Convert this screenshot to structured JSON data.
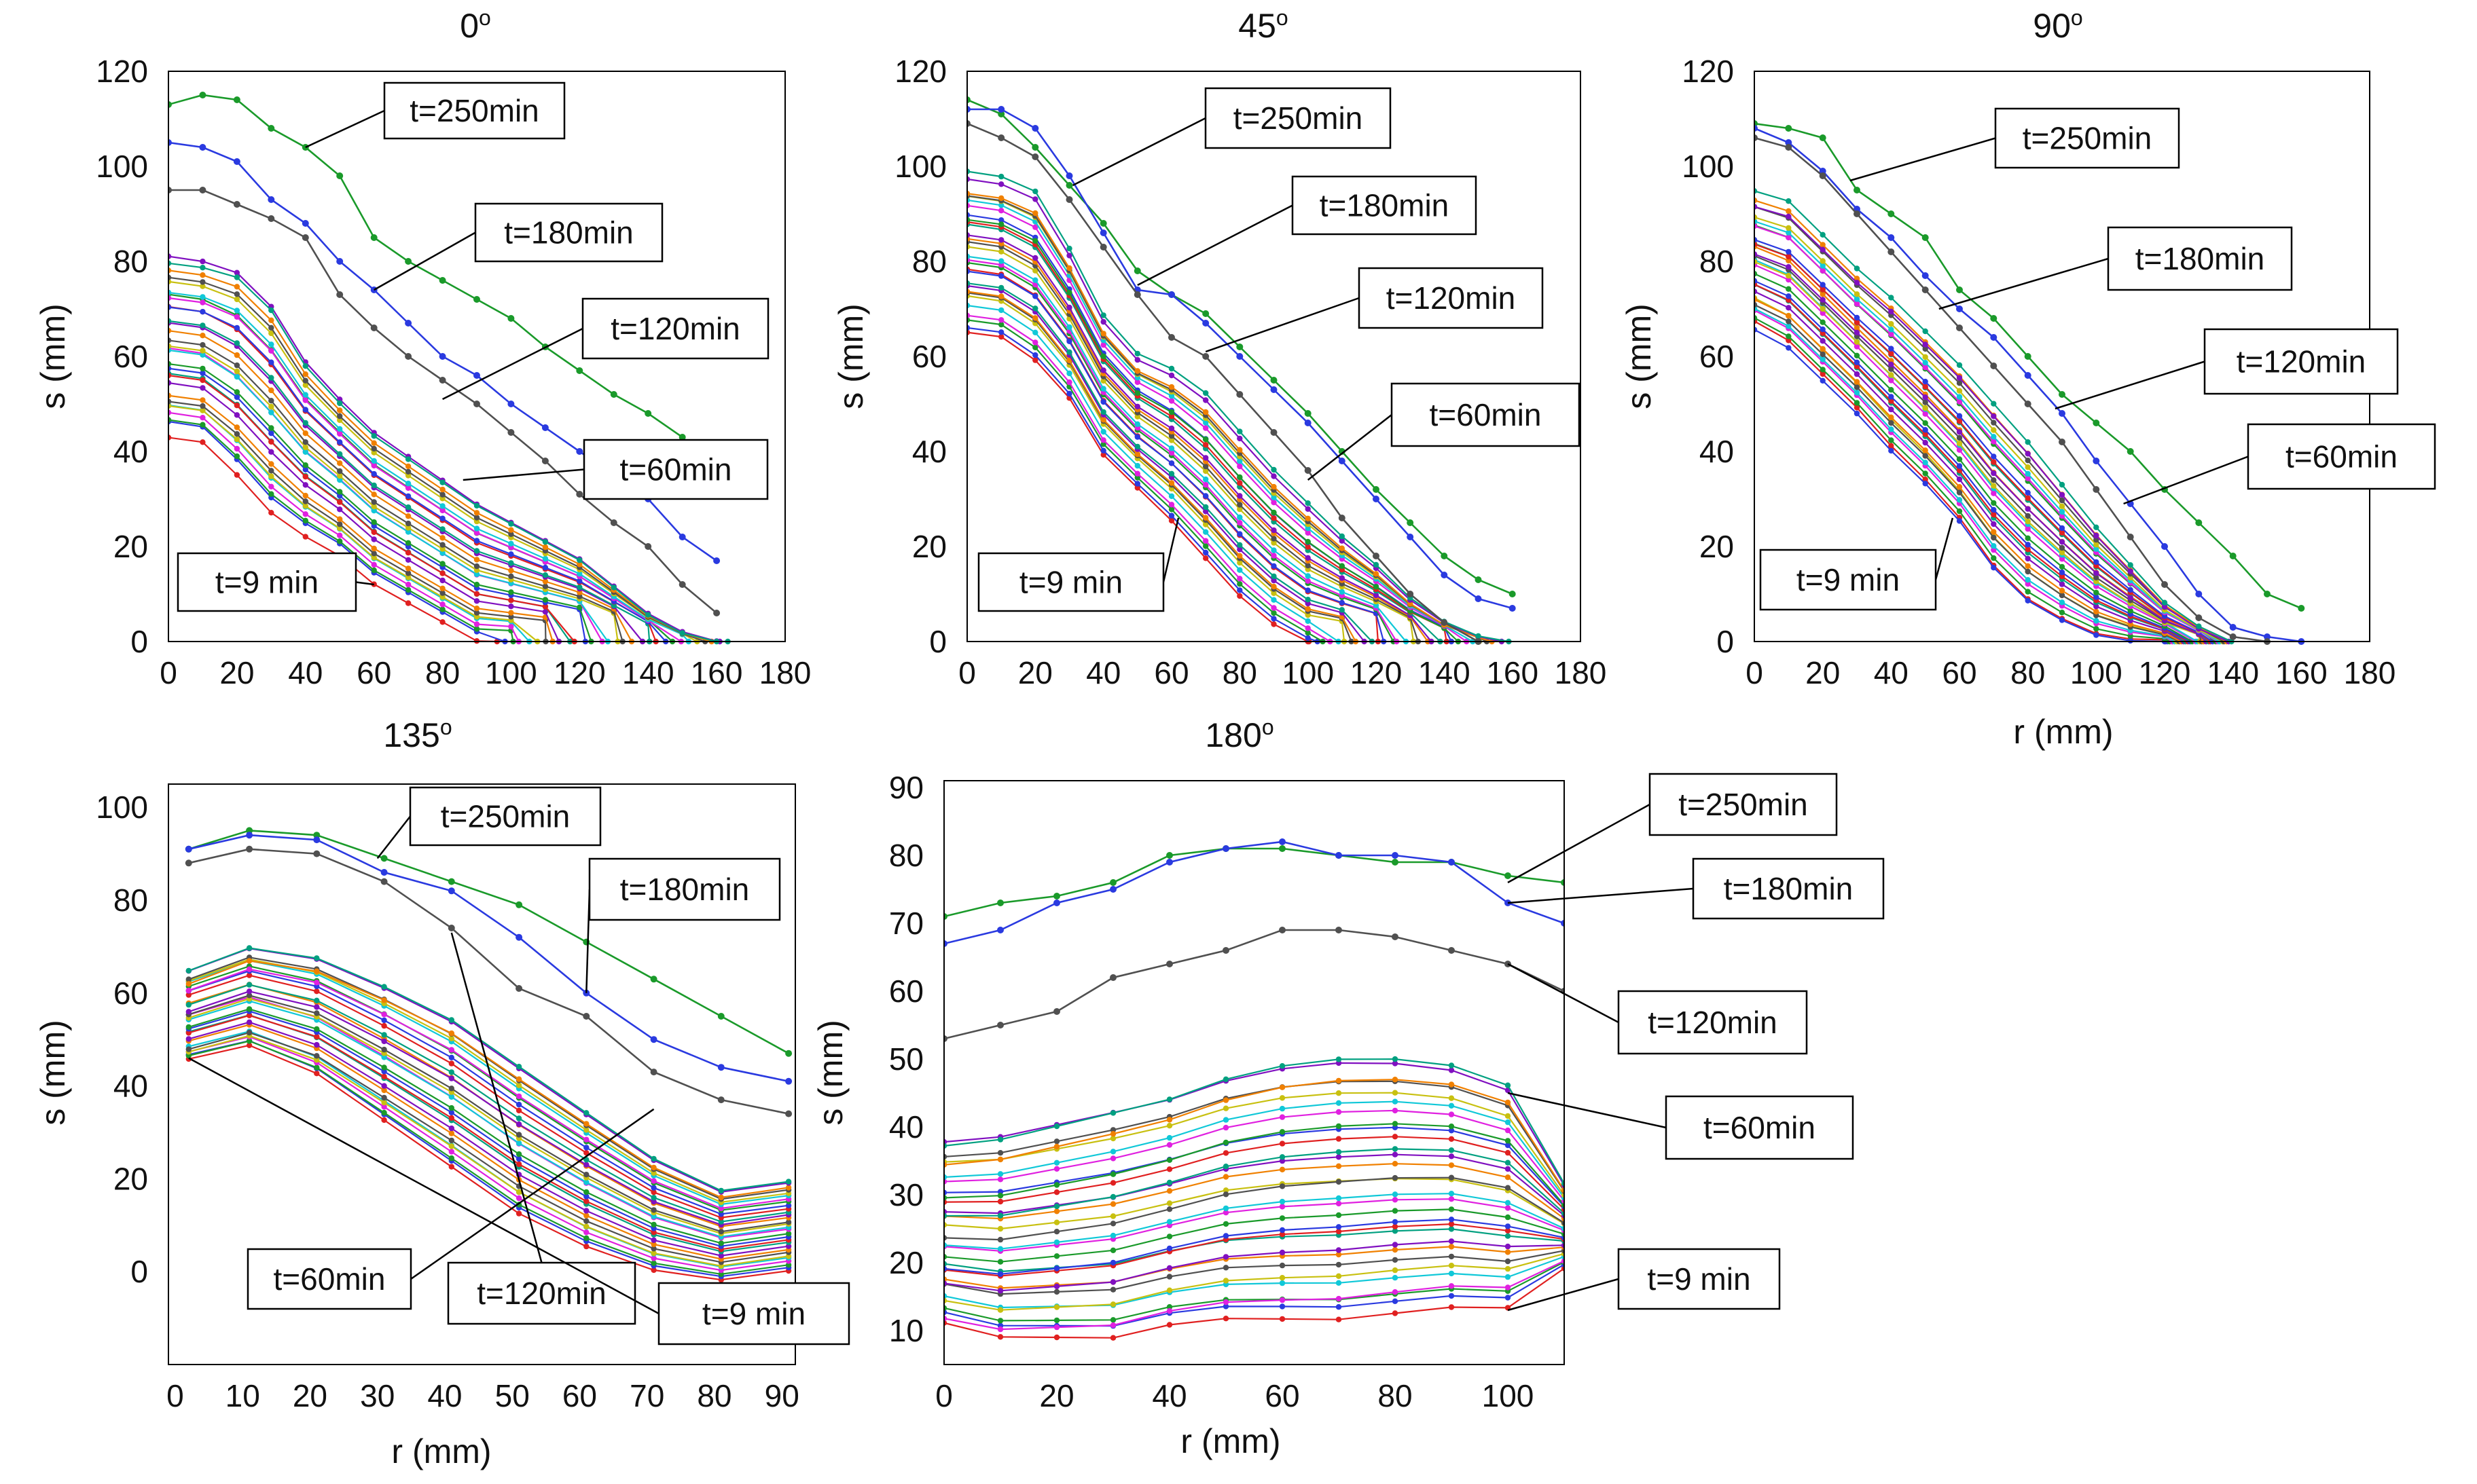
{
  "chart_data": [
    {
      "type": "line",
      "title": "0",
      "title_sup": "o",
      "xlabel": "",
      "ylabel": "s (mm)",
      "xlim": [
        0,
        180
      ],
      "ylim": [
        0,
        120
      ],
      "xticks": [
        "0",
        "20",
        "40",
        "60",
        "80",
        "100",
        "120",
        "140",
        "160",
        "180"
      ],
      "yticks": [
        "0",
        "20",
        "40",
        "60",
        "80",
        "100",
        "120"
      ],
      "grid": false,
      "envelope": {
        "x": [
          0,
          10,
          20,
          30,
          40,
          50,
          60,
          70,
          80,
          90,
          100,
          110,
          120,
          130,
          140,
          150,
          160
        ],
        "upper": [
          82,
          81,
          79,
          72,
          60,
          52,
          45,
          40,
          35,
          30,
          26,
          22,
          18,
          12,
          6,
          2,
          0
        ],
        "lower": [
          43,
          42,
          35,
          27,
          22,
          18,
          12,
          8,
          4,
          0,
          0,
          0,
          0,
          0,
          0,
          0,
          0
        ],
        "count": 30,
        "end_x": [
          95,
          165
        ]
      },
      "series": [
        {
          "name": "t=250min",
          "color": "#1a9a2a",
          "x": [
            0,
            10,
            20,
            30,
            40,
            50,
            60,
            70,
            80,
            90,
            100,
            110,
            120,
            130,
            140,
            150
          ],
          "values": [
            113,
            115,
            114,
            108,
            104,
            98,
            85,
            80,
            76,
            72,
            68,
            62,
            57,
            52,
            48,
            43
          ]
        },
        {
          "name": "t=180min",
          "color": "#2a3ae0",
          "x": [
            0,
            10,
            20,
            30,
            40,
            50,
            60,
            70,
            80,
            90,
            100,
            110,
            120,
            130,
            140,
            150,
            160
          ],
          "values": [
            105,
            104,
            101,
            93,
            88,
            80,
            74,
            67,
            60,
            56,
            50,
            45,
            40,
            35,
            30,
            22,
            17
          ]
        },
        {
          "name": "t=120min",
          "color": "#505050",
          "x": [
            0,
            10,
            20,
            30,
            40,
            50,
            60,
            70,
            80,
            90,
            100,
            110,
            120,
            130,
            140,
            150,
            160
          ],
          "values": [
            95,
            95,
            92,
            89,
            85,
            73,
            66,
            60,
            55,
            50,
            44,
            38,
            31,
            25,
            20,
            12,
            6
          ]
        }
      ],
      "annotations": [
        {
          "text": "t=250min",
          "anchor": [
            40,
            104
          ]
        },
        {
          "text": "t=180min",
          "anchor": [
            60,
            74
          ]
        },
        {
          "text": "t=120min",
          "anchor": [
            80,
            51
          ]
        },
        {
          "text": "t=60min",
          "anchor": [
            86,
            34
          ]
        },
        {
          "text": "t=9 min",
          "anchor": [
            60,
            12
          ]
        }
      ]
    },
    {
      "type": "line",
      "title": "45",
      "title_sup": "o",
      "xlabel": "",
      "ylabel": "s (mm)",
      "xlim": [
        0,
        180
      ],
      "ylim": [
        0,
        120
      ],
      "xticks": [
        "0",
        "20",
        "40",
        "60",
        "80",
        "100",
        "120",
        "140",
        "160",
        "180"
      ],
      "yticks": [
        "0",
        "20",
        "40",
        "60",
        "80",
        "100",
        "120"
      ],
      "grid": false,
      "envelope": {
        "x": [
          0,
          10,
          20,
          30,
          40,
          50,
          60,
          70,
          80,
          90,
          100,
          110,
          120,
          130,
          140,
          150,
          160
        ],
        "upper": [
          98,
          97,
          94,
          82,
          68,
          60,
          57,
          52,
          44,
          36,
          29,
          22,
          16,
          9,
          4,
          1,
          0
        ],
        "lower": [
          66,
          65,
          60,
          52,
          40,
          33,
          26,
          18,
          10,
          4,
          0,
          0,
          0,
          0,
          0,
          0,
          0
        ],
        "count": 30,
        "end_x": [
          100,
          160
        ]
      },
      "series": [
        {
          "name": "t=250min",
          "color": "#1a9a2a",
          "x": [
            0,
            10,
            20,
            30,
            40,
            50,
            60,
            70,
            80,
            90,
            100,
            110,
            120,
            130,
            140,
            150,
            160
          ],
          "values": [
            114,
            111,
            104,
            96,
            88,
            78,
            73,
            69,
            62,
            55,
            48,
            40,
            32,
            25,
            18,
            13,
            10
          ]
        },
        {
          "name": "t=180min",
          "color": "#2a3ae0",
          "x": [
            0,
            10,
            20,
            30,
            40,
            50,
            60,
            70,
            80,
            90,
            100,
            110,
            120,
            130,
            140,
            150,
            160
          ],
          "values": [
            112,
            112,
            108,
            98,
            86,
            74,
            73,
            67,
            60,
            53,
            46,
            38,
            30,
            22,
            14,
            9,
            7
          ]
        },
        {
          "name": "t=120min",
          "color": "#505050",
          "x": [
            0,
            10,
            20,
            30,
            40,
            50,
            60,
            70,
            80,
            90,
            100,
            110,
            120,
            130,
            140,
            150
          ],
          "values": [
            109,
            106,
            102,
            93,
            83,
            73,
            64,
            60,
            52,
            44,
            36,
            26,
            18,
            10,
            4,
            0
          ]
        }
      ],
      "annotations": [
        {
          "text": "t=250min",
          "anchor": [
            31,
            96
          ]
        },
        {
          "text": "t=180min",
          "anchor": [
            50,
            75
          ]
        },
        {
          "text": "t=120min",
          "anchor": [
            70,
            61
          ]
        },
        {
          "text": "t=60min",
          "anchor": [
            100,
            34
          ]
        },
        {
          "text": "t=9 min",
          "anchor": [
            62,
            26
          ]
        }
      ]
    },
    {
      "type": "line",
      "title": "90",
      "title_sup": "o",
      "xlabel": "r (mm)",
      "ylabel": "s (mm)",
      "xlim": [
        0,
        180
      ],
      "ylim": [
        0,
        120
      ],
      "xticks": [
        "0",
        "20",
        "40",
        "60",
        "80",
        "100",
        "120",
        "140",
        "160",
        "180"
      ],
      "yticks": [
        "0",
        "20",
        "40",
        "60",
        "80",
        "100",
        "120"
      ],
      "grid": false,
      "envelope": {
        "x": [
          0,
          10,
          20,
          30,
          40,
          50,
          60,
          70,
          80,
          90,
          100,
          110,
          120,
          130,
          140,
          150
        ],
        "upper": [
          94,
          92,
          85,
          78,
          72,
          65,
          58,
          50,
          42,
          33,
          24,
          16,
          8,
          3,
          0,
          0
        ],
        "lower": [
          66,
          62,
          55,
          48,
          40,
          33,
          25,
          15,
          8,
          4,
          1,
          0,
          0,
          0,
          0,
          0
        ],
        "count": 30,
        "end_x": [
          120,
          140
        ]
      },
      "series": [
        {
          "name": "t=250min",
          "color": "#1a9a2a",
          "x": [
            0,
            10,
            20,
            30,
            40,
            50,
            60,
            70,
            80,
            90,
            100,
            110,
            120,
            130,
            140,
            150,
            160
          ],
          "values": [
            109,
            108,
            106,
            95,
            90,
            85,
            74,
            68,
            60,
            52,
            46,
            40,
            32,
            25,
            18,
            10,
            7
          ]
        },
        {
          "name": "t=180min",
          "color": "#2a3ae0",
          "x": [
            0,
            10,
            20,
            30,
            40,
            50,
            60,
            70,
            80,
            90,
            100,
            110,
            120,
            130,
            140,
            150,
            160
          ],
          "values": [
            108,
            105,
            99,
            91,
            85,
            77,
            70,
            64,
            56,
            48,
            38,
            29,
            20,
            10,
            3,
            1,
            0
          ]
        },
        {
          "name": "t=120min",
          "color": "#505050",
          "x": [
            0,
            10,
            20,
            30,
            40,
            50,
            60,
            70,
            80,
            90,
            100,
            110,
            120,
            130,
            140,
            150
          ],
          "values": [
            106,
            104,
            98,
            90,
            82,
            74,
            66,
            58,
            50,
            42,
            32,
            22,
            12,
            5,
            1,
            0
          ]
        }
      ],
      "annotations": [
        {
          "text": "t=250min",
          "anchor": [
            28,
            97
          ]
        },
        {
          "text": "t=180min",
          "anchor": [
            54,
            70
          ]
        },
        {
          "text": "t=120min",
          "anchor": [
            88,
            49
          ]
        },
        {
          "text": "t=60min",
          "anchor": [
            108,
            29
          ]
        },
        {
          "text": "t=9 min",
          "anchor": [
            58,
            26
          ]
        }
      ]
    },
    {
      "type": "line",
      "title": "135",
      "title_sup": "o",
      "xlabel": "r (mm)",
      "ylabel": "s (mm)",
      "xlim": [
        -1,
        92
      ],
      "ylim": [
        -20,
        105
      ],
      "xticks": [
        "0",
        "10",
        "20",
        "30",
        "40",
        "50",
        "60",
        "70",
        "80",
        "90"
      ],
      "yticks": [
        "0",
        "20",
        "40",
        "60",
        "80",
        "100"
      ],
      "grid": false,
      "envelope": {
        "x": [
          2,
          11,
          21,
          31,
          41,
          51,
          61,
          71,
          81,
          91
        ],
        "upper": [
          65,
          70,
          68,
          62,
          55,
          45,
          35,
          25,
          18,
          20
        ],
        "lower": [
          45,
          48,
          42,
          32,
          22,
          12,
          5,
          0,
          -2,
          0
        ],
        "count": 30
      },
      "series": [
        {
          "name": "t=250min",
          "color": "#1a9a2a",
          "x": [
            2,
            11,
            21,
            31,
            41,
            51,
            61,
            71,
            81,
            91
          ],
          "values": [
            91,
            95,
            94,
            89,
            84,
            79,
            71,
            63,
            55,
            47
          ]
        },
        {
          "name": "t=180min",
          "color": "#2a3ae0",
          "x": [
            2,
            11,
            21,
            31,
            41,
            51,
            61,
            71,
            81,
            91
          ],
          "values": [
            91,
            94,
            93,
            86,
            82,
            72,
            60,
            50,
            44,
            41
          ]
        },
        {
          "name": "t=120min",
          "color": "#505050",
          "x": [
            2,
            11,
            21,
            31,
            41,
            51,
            61,
            71,
            81,
            91
          ],
          "values": [
            88,
            91,
            90,
            84,
            74,
            61,
            55,
            43,
            37,
            34
          ]
        }
      ],
      "annotations": [
        {
          "text": "t=250min",
          "anchor": [
            30,
            89
          ]
        },
        {
          "text": "t=180min",
          "anchor": [
            61,
            60
          ]
        },
        {
          "text": "t=120min",
          "anchor": [
            41,
            73
          ]
        },
        {
          "text": "t=60min",
          "anchor": [
            71,
            35
          ]
        },
        {
          "text": "t=9 min",
          "anchor": [
            2,
            46
          ]
        }
      ]
    },
    {
      "type": "line",
      "title": "180",
      "title_sup": "o",
      "xlabel": "r (mm)",
      "ylabel": "s (mm)",
      "xlim": [
        0,
        110
      ],
      "ylim": [
        5,
        91
      ],
      "xticks": [
        "0",
        "20",
        "40",
        "60",
        "80",
        "100"
      ],
      "yticks": [
        "10",
        "20",
        "30",
        "40",
        "50",
        "60",
        "70",
        "80",
        "90"
      ],
      "grid": false,
      "envelope": {
        "x": [
          0,
          10,
          20,
          30,
          40,
          50,
          60,
          70,
          80,
          90,
          100,
          110
        ],
        "upper": [
          38,
          39,
          41,
          43,
          45,
          48,
          50,
          51,
          51,
          50,
          47,
          32
        ],
        "lower": [
          10,
          8,
          8,
          8,
          10,
          11,
          11,
          11,
          12,
          13,
          13,
          19
        ],
        "count": 30
      },
      "series": [
        {
          "name": "t=250min",
          "color": "#1a9a2a",
          "x": [
            0,
            10,
            20,
            30,
            40,
            50,
            60,
            70,
            80,
            90,
            100,
            110
          ],
          "values": [
            71,
            73,
            74,
            76,
            80,
            81,
            81,
            80,
            79,
            79,
            77,
            76
          ]
        },
        {
          "name": "t=180min",
          "color": "#2a3ae0",
          "x": [
            0,
            10,
            20,
            30,
            40,
            50,
            60,
            70,
            80,
            90,
            100,
            110
          ],
          "values": [
            67,
            69,
            73,
            75,
            79,
            81,
            82,
            80,
            80,
            79,
            73,
            70
          ]
        },
        {
          "name": "t=120min",
          "color": "#505050",
          "x": [
            0,
            10,
            20,
            30,
            40,
            50,
            60,
            70,
            80,
            90,
            100,
            110
          ],
          "values": [
            53,
            55,
            57,
            62,
            64,
            66,
            69,
            69,
            68,
            66,
            64,
            60
          ]
        }
      ],
      "annotations": [
        {
          "text": "t=250min",
          "anchor": [
            100,
            76
          ]
        },
        {
          "text": "t=180min",
          "anchor": [
            100,
            73
          ]
        },
        {
          "text": "t=120min",
          "anchor": [
            100,
            64
          ]
        },
        {
          "text": "t=60min",
          "anchor": [
            100,
            45
          ]
        },
        {
          "text": "t=9 min",
          "anchor": [
            100,
            13
          ]
        }
      ]
    }
  ],
  "palette": [
    "#e02020",
    "#2a3ae0",
    "#1a9a2a",
    "#e020e0",
    "#10c8d8",
    "#c8c010",
    "#505050",
    "#f08000",
    "#8010c0",
    "#00a080"
  ]
}
